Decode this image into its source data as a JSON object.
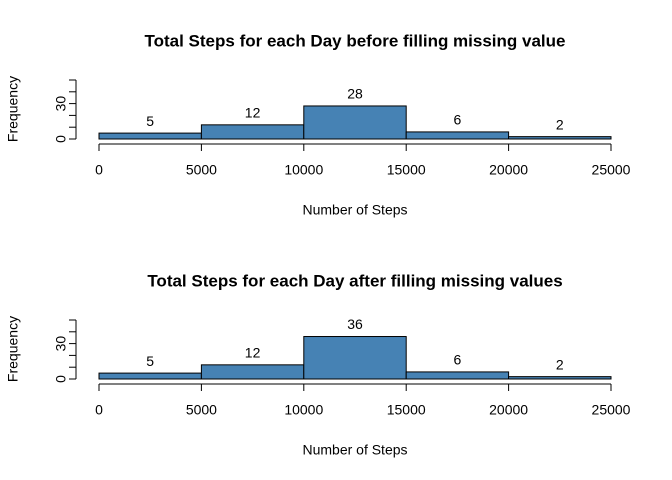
{
  "chart_data": [
    {
      "type": "histogram",
      "title": "Total Steps for each Day before filling missing value",
      "xlabel": "Number of Steps",
      "ylabel": "Frequency",
      "bins": [
        0,
        5000,
        10000,
        15000,
        20000,
        25000
      ],
      "values": [
        5,
        12,
        28,
        6,
        2
      ],
      "color": "#4682b4",
      "xlim": [
        0,
        25000
      ],
      "xticks": [
        0,
        5000,
        10000,
        15000,
        20000,
        25000
      ],
      "ylim": [
        0,
        50
      ],
      "yticks": [
        0,
        30
      ],
      "yminor": [
        10,
        20,
        40,
        50
      ]
    },
    {
      "type": "histogram",
      "title": "Total Steps for each Day after filling missing values",
      "xlabel": "Number of Steps",
      "ylabel": "Frequency",
      "bins": [
        0,
        5000,
        10000,
        15000,
        20000,
        25000
      ],
      "values": [
        5,
        12,
        36,
        6,
        2
      ],
      "color": "#4682b4",
      "xlim": [
        0,
        25000
      ],
      "xticks": [
        0,
        5000,
        10000,
        15000,
        20000,
        25000
      ],
      "ylim": [
        0,
        50
      ],
      "yticks": [
        0,
        30
      ],
      "yminor": [
        10,
        20,
        40,
        50
      ]
    }
  ]
}
